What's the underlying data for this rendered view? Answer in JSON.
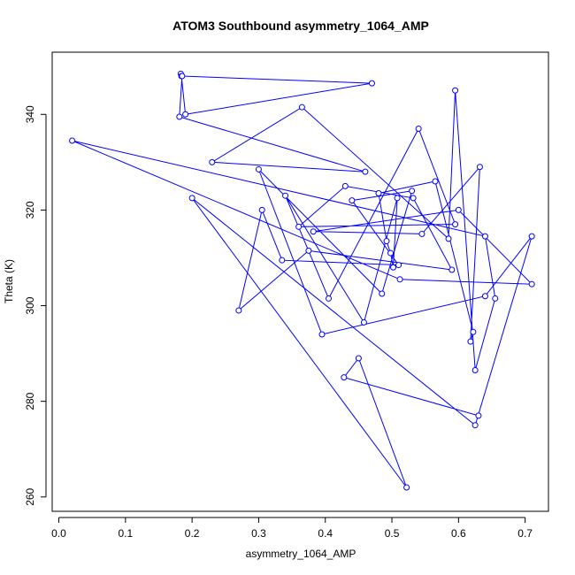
{
  "chart_data": {
    "type": "line",
    "title": "ATOM3 Southbound asymmetry_1064_AMP",
    "xlabel": "asymmetry_1064_AMP",
    "ylabel": "Theta (K)",
    "xlim": [
      -0.01,
      0.735
    ],
    "ylim": [
      257,
      353
    ],
    "xticks": [
      0.0,
      0.1,
      0.2,
      0.3,
      0.4,
      0.5,
      0.6,
      0.7
    ],
    "xtick_labels": [
      "0.0",
      "0.1",
      "0.2",
      "0.3",
      "0.4",
      "0.5",
      "0.6",
      "0.7"
    ],
    "yticks": [
      260,
      280,
      300,
      320,
      340
    ],
    "ytick_labels": [
      "260",
      "280",
      "300",
      "320",
      "340"
    ],
    "grid": false,
    "line_color": "#0000ff",
    "marker": "open-circle",
    "series": [
      {
        "x": [
          0.183,
          0.184,
          0.19,
          0.47,
          0.185,
          0.181,
          0.46,
          0.23,
          0.365,
          0.585,
          0.595,
          0.625,
          0.655,
          0.64,
          0.02,
          0.512,
          0.71,
          0.6,
          0.382,
          0.545,
          0.632,
          0.618,
          0.622,
          0.565,
          0.48,
          0.492,
          0.498,
          0.502,
          0.508,
          0.458,
          0.34,
          0.405,
          0.54,
          0.595,
          0.36,
          0.43,
          0.532,
          0.59,
          0.375,
          0.27,
          0.305,
          0.335,
          0.51,
          0.44,
          0.53,
          0.485,
          0.3,
          0.395,
          0.64,
          0.71,
          0.625,
          0.2,
          0.522,
          0.45,
          0.428,
          0.63
        ],
        "y": [
          348.5,
          348.0,
          340.0,
          346.5,
          348.0,
          339.5,
          328.0,
          330.0,
          341.5,
          314.0,
          345.0,
          286.5,
          301.5,
          314.5,
          334.5,
          305.5,
          304.5,
          320.0,
          315.5,
          315.0,
          329.0,
          292.5,
          294.5,
          326.0,
          323.5,
          313.5,
          311.0,
          308.0,
          322.5,
          296.5,
          323.0,
          301.5,
          337.0,
          317.0,
          316.5,
          325.0,
          322.5,
          307.5,
          311.5,
          299.0,
          320.0,
          309.5,
          308.5,
          322.0,
          324.0,
          302.5,
          328.5,
          294.0,
          302.0,
          314.5,
          275.0,
          322.5,
          262.0,
          289.0,
          285.0,
          277.0
        ]
      }
    ]
  }
}
